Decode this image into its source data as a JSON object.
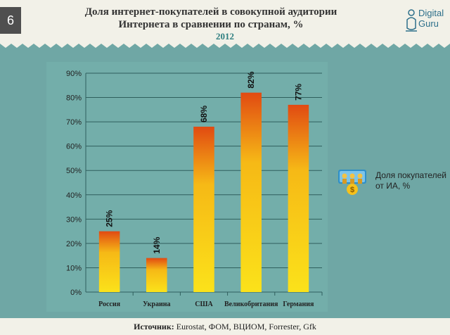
{
  "slide_number": "6",
  "title_line1": "Доля интернет-покупателей в совокупной аудитории",
  "title_line2": "Интернета в сравнении по странам, %",
  "year": "2012",
  "logo": {
    "line1": "Digital",
    "line2": "Guru"
  },
  "legend": {
    "label": "Доля покупателей\nот ИА, %",
    "icon": "shoppers-icon"
  },
  "footer": {
    "label": "Источник:",
    "value": " Eurostat, ФОМ, ВЦИОМ, Forrester, Gfk"
  },
  "colors": {
    "bar_top": "#e14a12",
    "bar_mid": "#f6b916",
    "bar_bottom": "#fbe21a",
    "background": "#6fa7a5"
  },
  "chart_data": {
    "type": "bar",
    "title": "Доля интернет-покупателей в совокупной аудитории Интернета в сравнении по странам, %",
    "categories": [
      "Россия",
      "Украина",
      "США",
      "Великобритания",
      "Германия"
    ],
    "series": [
      {
        "name": "Доля покупателей от ИА, %",
        "values": [
          25,
          14,
          68,
          82,
          77
        ]
      }
    ],
    "data_labels": [
      "25%",
      "14%",
      "68%",
      "82%",
      "77%"
    ],
    "ylim": [
      0,
      90
    ],
    "yticks": [
      0,
      10,
      20,
      30,
      40,
      50,
      60,
      70,
      80,
      90
    ],
    "ytick_labels": [
      "0%",
      "10%",
      "20%",
      "30%",
      "40%",
      "50%",
      "60%",
      "70%",
      "80%",
      "90%"
    ],
    "xlabel": "",
    "ylabel": "",
    "grid": true,
    "legend_position": "right"
  }
}
